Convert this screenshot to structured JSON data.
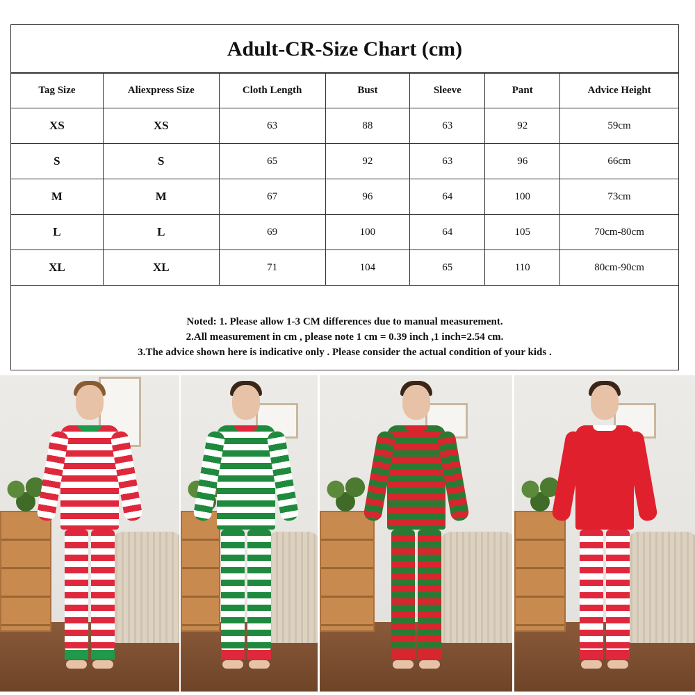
{
  "title": "Adult-CR-Size Chart  (cm)",
  "columns": [
    "Tag Size",
    "Aliexpress Size",
    "Cloth Length",
    "Bust",
    "Sleeve",
    "Pant",
    "Advice Height"
  ],
  "rows": [
    [
      "XS",
      "XS",
      "63",
      "88",
      "63",
      "92",
      "59cm"
    ],
    [
      "S",
      "S",
      "65",
      "92",
      "63",
      "96",
      "66cm"
    ],
    [
      "M",
      "M",
      "67",
      "96",
      "64",
      "100",
      "73cm"
    ],
    [
      "L",
      "L",
      "69",
      "100",
      "64",
      "105",
      "70cm-80cm"
    ],
    [
      "XL",
      "XL",
      "71",
      "104",
      "65",
      "110",
      "80cm-90cm"
    ]
  ],
  "notes": [
    "Noted: 1. Please allow 1-3 CM differences due to manual measurement.",
    "2.All measurement in cm , please note 1 cm = 0.39 inch ,1 inch=2.54 cm.",
    "3.The advice shown here is indicative only . Please consider the actual condition of your kids ."
  ],
  "photos": [
    {
      "top": [
        "#e0283c",
        "#ffffff"
      ],
      "pants": [
        "#e0283c",
        "#ffffff"
      ],
      "trim": "#1f9a4a",
      "hair": "#8a5a32"
    },
    {
      "top": [
        "#1f8a3e",
        "#ffffff"
      ],
      "pants": [
        "#1f8a3e",
        "#ffffff"
      ],
      "trim": "#e0283c",
      "hair": "#3a2618"
    },
    {
      "top": [
        "#2a7a34",
        "#d8262e"
      ],
      "pants": [
        "#2a7a34",
        "#d8262e"
      ],
      "trim": "#d8262e",
      "hair": "#3a2618"
    },
    {
      "top": [
        "#e0202c",
        "#e0202c"
      ],
      "pants": [
        "#e0283c",
        "#ffffff"
      ],
      "trim": "#ffffff",
      "hair": "#3a2618"
    }
  ]
}
